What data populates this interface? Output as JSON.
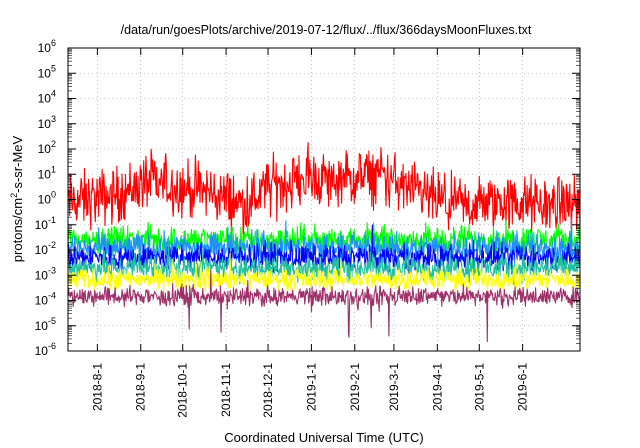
{
  "chart_data": {
    "type": "line",
    "title": "/data/run/goesPlots/archive/2019-07-12/flux/../flux/366daysMoonFluxes.txt",
    "xlabel": "Coordinated Universal Time (UTC)",
    "ylabel_parts": [
      "protons/cm",
      "2",
      "-s-sr-MeV"
    ],
    "yscale": "log",
    "ylim": [
      1e-06,
      1000000.0
    ],
    "ytick_labels": [
      {
        "base": "10",
        "exp": "-6"
      },
      {
        "base": "10",
        "exp": "-5"
      },
      {
        "base": "10",
        "exp": "-4"
      },
      {
        "base": "10",
        "exp": "-3"
      },
      {
        "base": "10",
        "exp": "-2"
      },
      {
        "base": "10",
        "exp": "-1"
      },
      {
        "base": "10",
        "exp": "0"
      },
      {
        "base": "10",
        "exp": "1"
      },
      {
        "base": "10",
        "exp": "2"
      },
      {
        "base": "10",
        "exp": "3"
      },
      {
        "base": "10",
        "exp": "4"
      },
      {
        "base": "10",
        "exp": "5"
      },
      {
        "base": "10",
        "exp": "6"
      }
    ],
    "xlim": [
      "2018-07-11",
      "2019-07-12"
    ],
    "xtick_labels": [
      "2018-8-1",
      "2018-9-1",
      "2018-10-1",
      "2018-11-1",
      "2018-12-1",
      "2019-1-1",
      "2019-2-1",
      "2019-3-1",
      "2019-4-1",
      "2019-5-1",
      "2019-6-1"
    ],
    "grid": true,
    "series": [
      {
        "color": "#ff0000",
        "x": [
          "2018-07-11",
          "2018-08-15",
          "2018-09-05",
          "2018-10-20",
          "2018-11-15",
          "2018-12-01",
          "2019-01-01",
          "2019-01-20",
          "2019-02-20",
          "2019-03-15",
          "2019-04-15",
          "2019-05-15",
          "2019-06-15",
          "2019-07-12"
        ],
        "values": [
          0.8,
          1.5,
          5,
          2,
          0.6,
          3,
          8,
          5,
          10,
          2,
          0.5,
          0.8,
          0.6,
          0.7
        ]
      },
      {
        "color": "#00ff00",
        "x": [
          "2018-07-11",
          "2019-07-12"
        ],
        "values": [
          0.025,
          0.025
        ]
      },
      {
        "color": "#1e90ff",
        "x": [
          "2018-07-11",
          "2019-07-12"
        ],
        "values": [
          0.012,
          0.012
        ]
      },
      {
        "color": "#0000ff",
        "x": [
          "2018-07-11",
          "2019-07-12"
        ],
        "values": [
          0.005,
          0.005
        ]
      },
      {
        "color": "#20c0a0",
        "x": [
          "2018-07-11",
          "2019-07-12"
        ],
        "values": [
          0.002,
          0.002
        ]
      },
      {
        "color": "#ffff00",
        "x": [
          "2018-07-11",
          "2019-07-12"
        ],
        "values": [
          0.0007,
          0.0007
        ]
      },
      {
        "color": "#a0306a",
        "x": [
          "2018-07-11",
          "2019-07-12"
        ],
        "values": [
          0.00015,
          0.00015
        ]
      }
    ]
  }
}
